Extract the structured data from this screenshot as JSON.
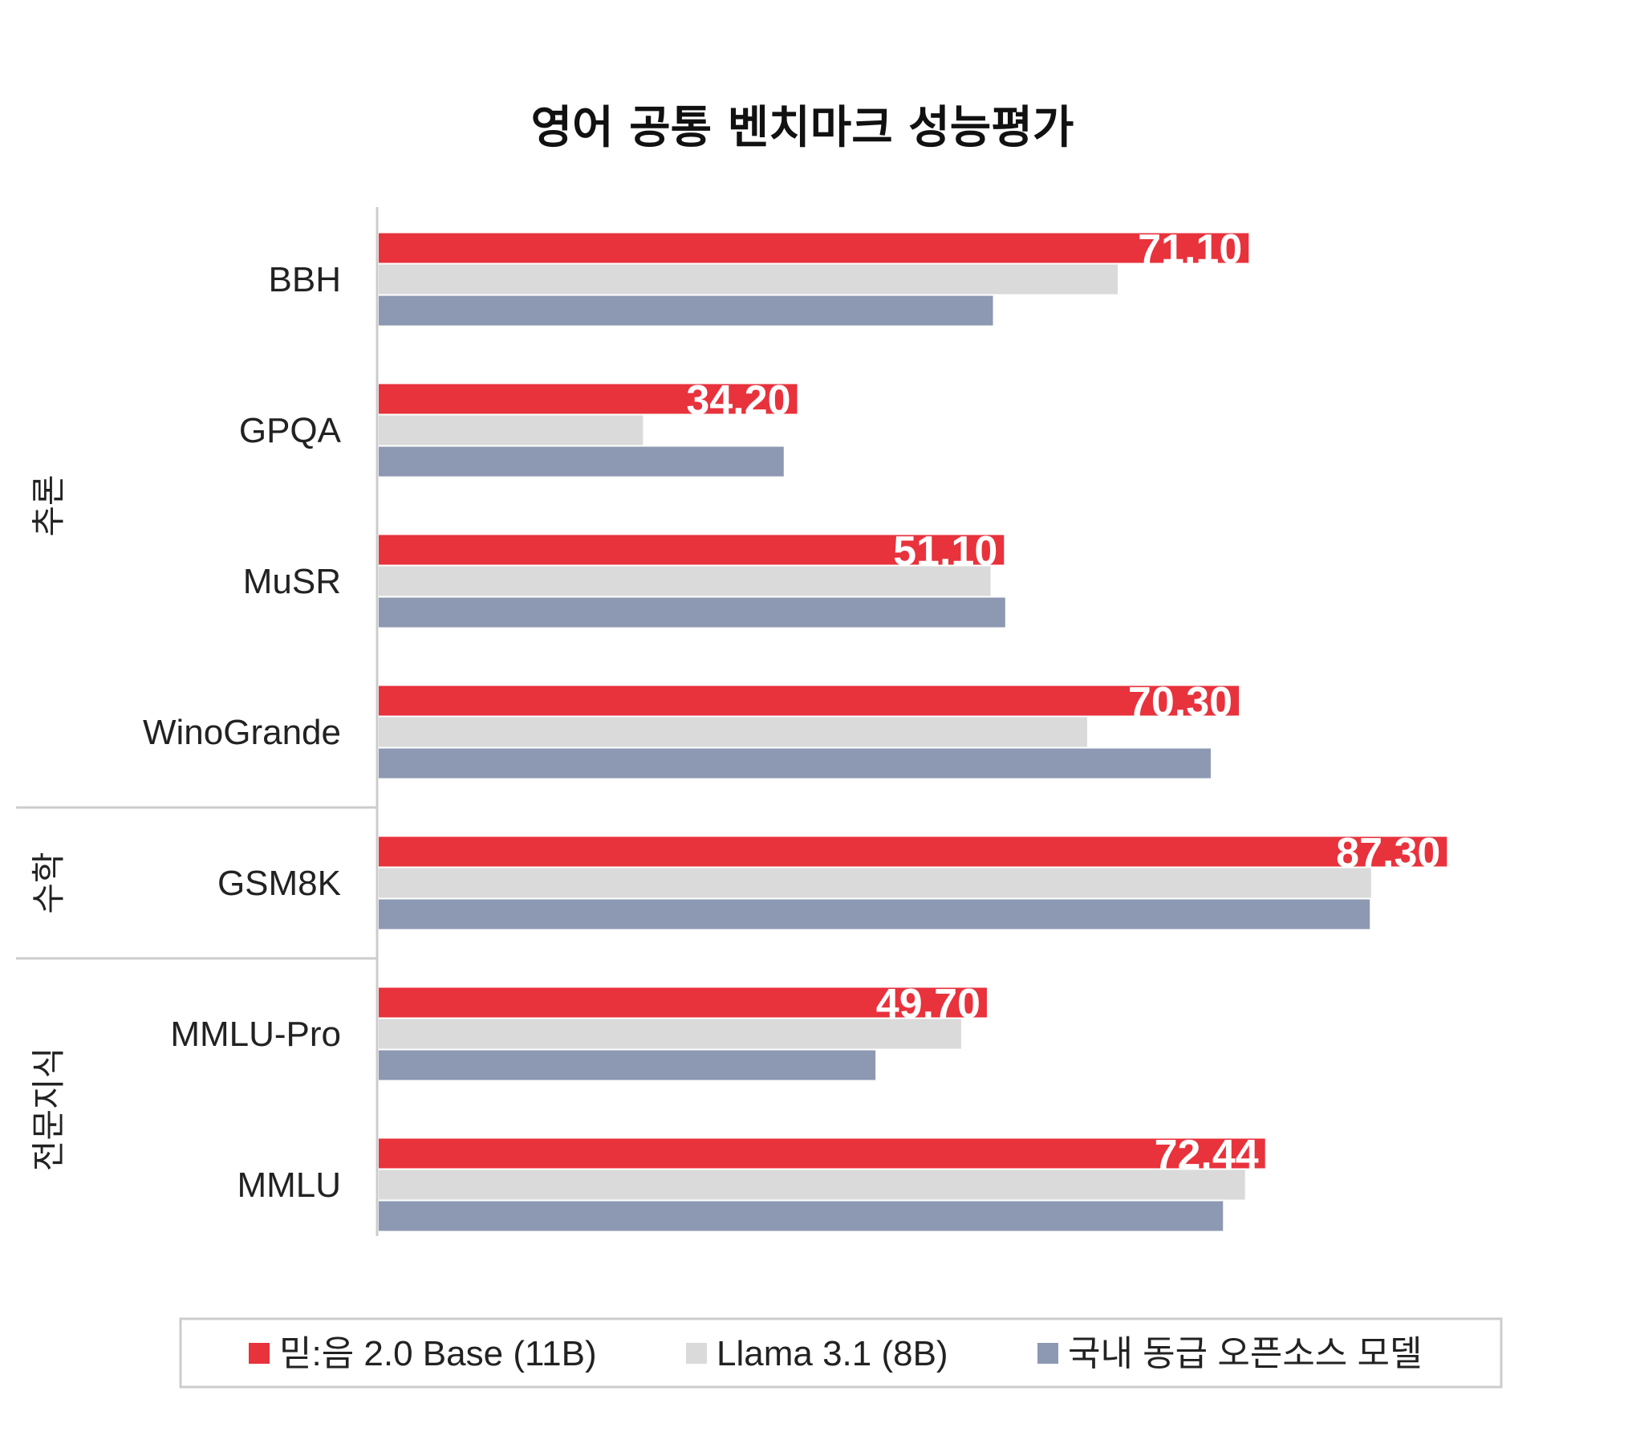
{
  "chart_data": {
    "type": "bar",
    "orientation": "horizontal",
    "title": "영어 공통 벤치마크 성능평가",
    "categories": [
      "BBH",
      "GPQA",
      "MuSR",
      "WinoGrande",
      "GSM8K",
      "MMLU-Pro",
      "MMLU"
    ],
    "groups": [
      {
        "label": "추론",
        "categories": [
          "BBH",
          "GPQA",
          "MuSR",
          "WinoGrande"
        ]
      },
      {
        "label": "수학",
        "categories": [
          "GSM8K"
        ]
      },
      {
        "label": "전문지식",
        "categories": [
          "MMLU-Pro",
          "MMLU"
        ]
      }
    ],
    "series": [
      {
        "name": "믿:음 2.0 Base (11B)",
        "color": "#E8323C",
        "values": [
          71.1,
          34.2,
          51.1,
          70.3,
          87.3,
          49.7,
          72.44
        ],
        "labels": [
          "71.10",
          "34.20",
          "51.10",
          "70.30",
          "87.30",
          "49.70",
          "72.44"
        ]
      },
      {
        "name": "Llama 3.1 (8B)",
        "color": "#DADADA",
        "values": [
          60.4,
          21.6,
          50.0,
          57.9,
          81.1,
          47.6,
          70.8
        ]
      },
      {
        "name": "국내 동급 오픈소스 모델",
        "color": "#8D99B2",
        "values": [
          50.2,
          33.1,
          51.2,
          68.0,
          81.0,
          40.6,
          69.0
        ]
      }
    ],
    "xlim": [
      0,
      100
    ],
    "grid": false,
    "legend": "bottom"
  }
}
